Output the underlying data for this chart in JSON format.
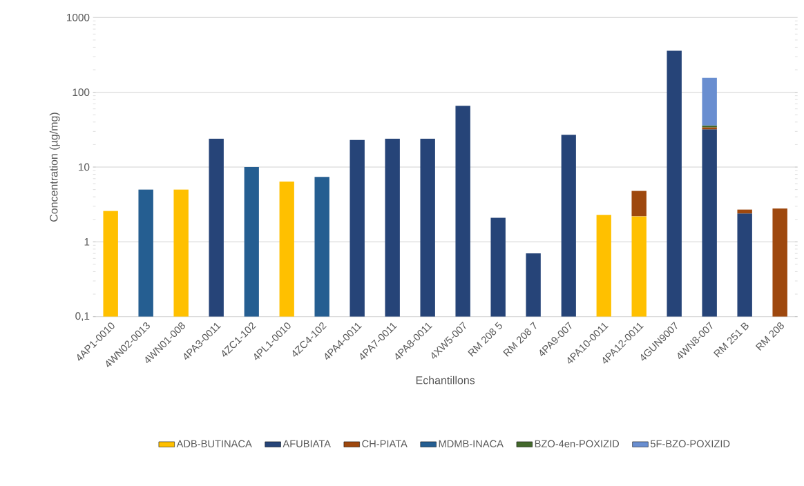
{
  "chart_data": {
    "type": "bar",
    "stacked": true,
    "log": "y",
    "grid": "y",
    "legend": "bottom",
    "xlabel": "Echantillons",
    "ylabel": "Concentration (µg/mg)",
    "categories": [
      "4AP1-0010",
      "4WN02-0013",
      "4WN01-008",
      "4PA3-0011",
      "4ZC1-102",
      "4PL1-0010",
      "4ZC4-102",
      "4PA4-0011",
      "4PA7-0011",
      "4PA8-0011",
      "4XW5-007",
      "RM 208 5",
      "RM 208 7",
      "4PA9-007",
      "4PA10-0011",
      "4PA12-0011",
      "4GUN9007",
      "4WN8-007",
      "RM 251 B",
      "RM 208"
    ],
    "ylim": [
      0.1,
      1000
    ],
    "yticks": [
      {
        "value": 0.1,
        "label": "0,1"
      },
      1,
      10,
      100,
      1000
    ],
    "series": [
      {
        "name": "ADB-BUTINACA",
        "color": "#ffc000",
        "values": [
          2.6,
          null,
          5.0,
          null,
          null,
          6.4,
          null,
          null,
          null,
          null,
          null,
          null,
          null,
          null,
          2.3,
          2.2,
          null,
          null,
          null,
          null
        ]
      },
      {
        "name": "AFUBIATA",
        "color": "#264478",
        "values": [
          null,
          null,
          null,
          24,
          null,
          null,
          null,
          23,
          24,
          24,
          66,
          2.1,
          0.7,
          27,
          null,
          null,
          360,
          32,
          2.4,
          null
        ]
      },
      {
        "name": "CH-PIATA",
        "color": "#9e480e",
        "values": [
          null,
          null,
          null,
          null,
          null,
          null,
          null,
          null,
          null,
          null,
          null,
          null,
          null,
          null,
          null,
          2.6,
          null,
          2,
          0.3,
          2.8
        ]
      },
      {
        "name": "MDMB-INACA",
        "color": "#255e91",
        "values": [
          null,
          5.0,
          null,
          null,
          10,
          null,
          7.4,
          null,
          null,
          null,
          null,
          null,
          null,
          null,
          null,
          null,
          null,
          null,
          null,
          null
        ]
      },
      {
        "name": "BZO-4en-POXIZID",
        "color": "#43682b",
        "values": [
          null,
          null,
          null,
          null,
          null,
          null,
          null,
          null,
          null,
          null,
          null,
          null,
          null,
          null,
          null,
          null,
          null,
          2,
          null,
          null
        ]
      },
      {
        "name": "5F-BZO-POXIZID",
        "color": "#698ed0",
        "values": [
          null,
          null,
          null,
          null,
          null,
          null,
          null,
          null,
          null,
          null,
          null,
          null,
          null,
          null,
          null,
          null,
          null,
          120,
          null,
          null
        ]
      }
    ]
  }
}
